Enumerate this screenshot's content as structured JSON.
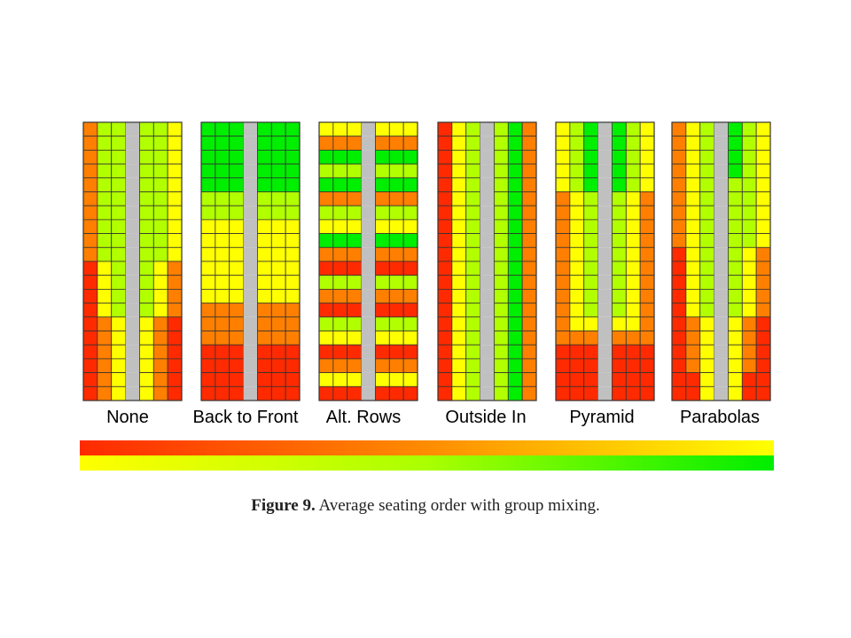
{
  "caption": {
    "label": "Figure 9.",
    "text": "Average seating order with group mixing."
  },
  "colors": {
    "R": "#ff2a00",
    "O": "#ff7f00",
    "Y": "#ffff00",
    "L": "#b2ff00",
    "G": "#00ee00",
    "aisle": "#c0c0c0",
    "border": "#333333"
  },
  "legend": {
    "top_gradient": [
      "#ff2a00",
      "#ff8c00",
      "#ffff00"
    ],
    "bottom_gradient": [
      "#ffff00",
      "#aaff00",
      "#00ee00"
    ]
  },
  "chart_data": {
    "type": "heatmap",
    "rows": 20,
    "columns_per_panel": 7,
    "aisle_column": 3,
    "value_scale": [
      "R",
      "O",
      "Y",
      "L",
      "G"
    ],
    "panels": [
      {
        "label": "None",
        "grid": [
          "OLLGLLY",
          "OLLGLLY",
          "OLLGLLY",
          "OLLGLLY",
          "OLLGLLY",
          "OLLGLLY",
          "OLLGLLY",
          "OLLGLLY",
          "OLLGLLY",
          "OLLGLLY",
          "RYLGLYO",
          "RYLGLYO",
          "RYLGLYO",
          "RYLGLYO",
          "ROYLYOR",
          "ROYLYOR",
          "ROYLYOR",
          "ROYLYOR",
          "ROYLYOR",
          "ROYLYOR"
        ]
      },
      {
        "label": "Back to Front",
        "grid": [
          "GGGGGGG",
          "GGGGGGG",
          "GGGGGGG",
          "GGGGGGG",
          "GGGGGGG",
          "LLLGLLL",
          "LLLGLLL",
          "YYYGYYY",
          "YYYGYYY",
          "YYYGYYY",
          "YYYGYYY",
          "YYYGYYY",
          "YYYGYYY",
          "OOOGOOO",
          "OOOGOOO",
          "OOOGOOO",
          "RRRGRRR",
          "RRRGRRR",
          "RRRGRRR",
          "RRRGRRR"
        ]
      },
      {
        "label": "Alt. Rows",
        "grid": [
          "YYYGYYY",
          "OOOGOOO",
          "GGGGGGG",
          "LLLGLLL",
          "GGGGGGG",
          "OOOGOOO",
          "LLLGLLL",
          "YYYGYYY",
          "GGGGGGG",
          "OOOGOOO",
          "RRRGRRR",
          "LLLGLLL",
          "OOOGOOO",
          "RRRGRRR",
          "LLLGLLL",
          "YYYGYYY",
          "RRRGRRR",
          "OOOGOOO",
          "YYYGYYY",
          "RRRGRRR"
        ]
      },
      {
        "label": "Outside In",
        "grid": [
          "RYLGLGO",
          "RYLGLGO",
          "RYLGLGO",
          "RYLGLGO",
          "RYLGLGO",
          "RYLGLGO",
          "RYLGLGO",
          "RYLGLGO",
          "RYLGLGO",
          "RYLGLGO",
          "RYLGLGO",
          "RYLGLGO",
          "RYLGLGO",
          "RYLGLGO",
          "RYLGLGO",
          "RYLGLGO",
          "RYLGLGO",
          "RYLGLGO",
          "RYLGLGO",
          "RYLGLGO"
        ]
      },
      {
        "label": "Pyramid",
        "grid": [
          "YLGGGLY",
          "YLGGGLY",
          "YLGGGLY",
          "YLGGGLY",
          "YLGGGLY",
          "OYLGLYO",
          "OYLGLYO",
          "OYLGLYO",
          "OYLGLYO",
          "OYLGLYO",
          "OYLGLYO",
          "OYLGLYO",
          "OYLGLYO",
          "OYLGLYO",
          "OYYGYYO",
          "OOOGOOO",
          "RRRGRRR",
          "RRRGRRR",
          "RRRGRRR",
          "RRRGRRR"
        ]
      },
      {
        "label": "Parabolas",
        "grid": [
          "OYLGGLY",
          "OYLGGLY",
          "OYLGGLY",
          "OYLGGLY",
          "OYLGLLY",
          "OYLGLLY",
          "OYLGLLY",
          "OYLGLLY",
          "OYLGLLY",
          "RYLGLYO",
          "RYLGLYO",
          "RYLGLYO",
          "RYLGLYO",
          "RYLGLYO",
          "ROYGYOR",
          "ROYGYOR",
          "ROYGYOR",
          "ROYGYOR",
          "RRYGYRR",
          "RRYGYRR"
        ]
      }
    ]
  }
}
